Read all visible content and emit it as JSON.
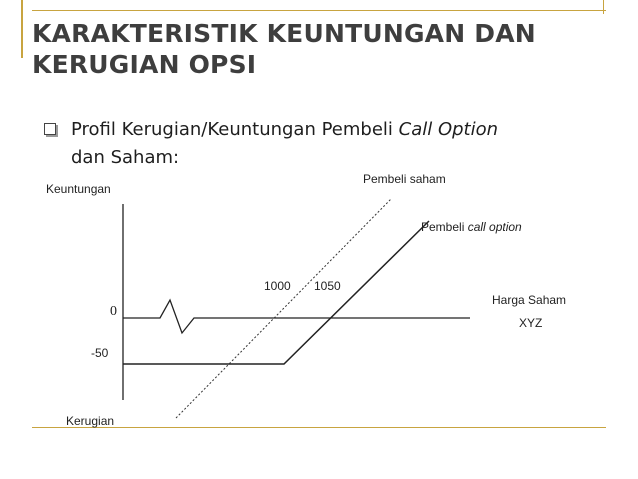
{
  "slide": {
    "title_line1": "KARAKTERISTIK KEUNTUNGAN DAN",
    "title_line2": "KERUGIAN OPSI",
    "bullet_prefix": "Profil Kerugian/Keuntungan Pembeli ",
    "bullet_italic": "Call Option",
    "bullet_suffix": "dan Saham:"
  },
  "diagram": {
    "y_top_label": "Keuntungan",
    "y_bottom_label": "Kerugian",
    "zero_label": "0",
    "minus_label": "-50",
    "strike_label": "1000",
    "breakeven_label": "1050",
    "x_label_line1": "Harga Saham",
    "x_label_line2": "XYZ",
    "stock_label": "Pembeli saham",
    "call_label_prefix": "Pembeli ",
    "call_label_italic": "call option"
  },
  "colors": {
    "accent": "#c8a440",
    "title": "#3e3e3e"
  }
}
